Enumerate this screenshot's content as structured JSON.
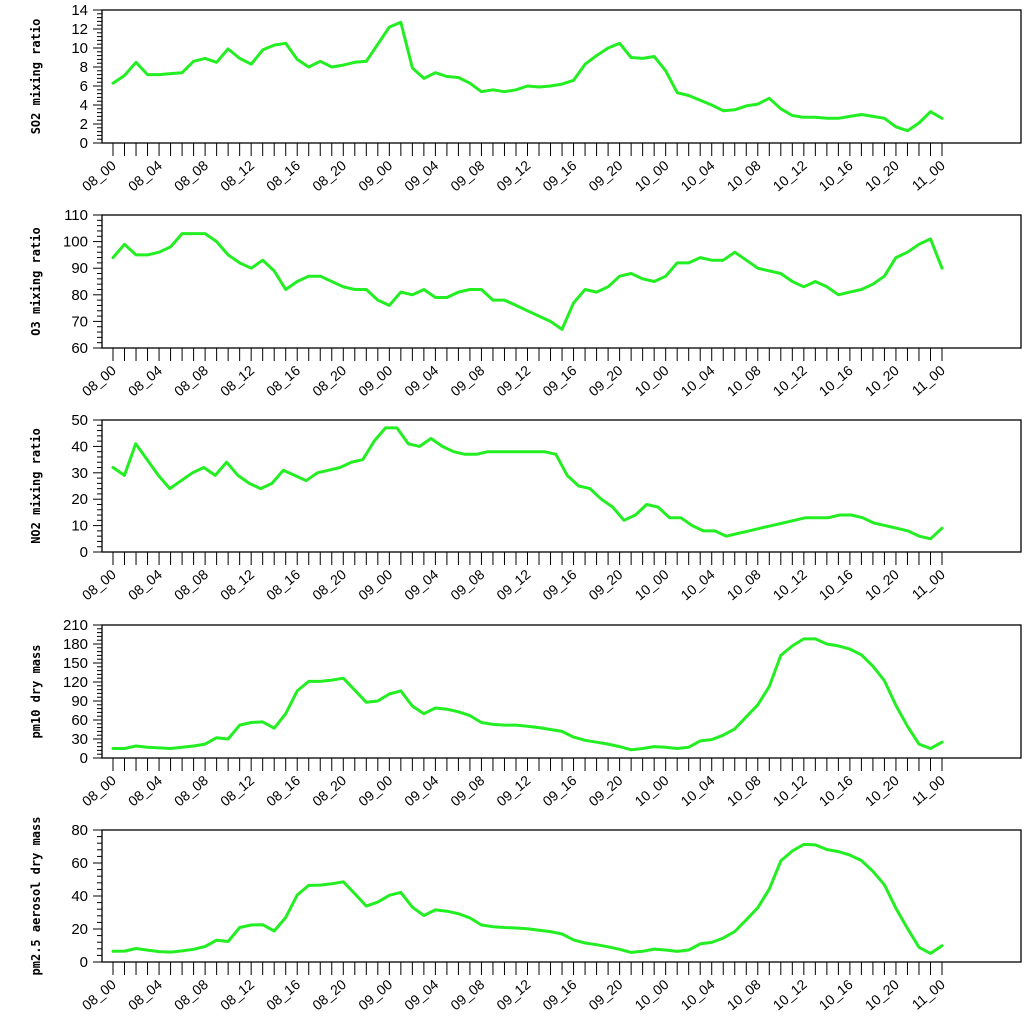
{
  "chart_data": [
    {
      "type": "line",
      "ylabel": "SO2 mixing ratio",
      "ylim": [
        0,
        14
      ],
      "yticks": [
        0,
        2,
        4,
        6,
        8,
        10,
        12,
        14
      ],
      "x_tick_labels": [
        "08_00",
        "08_04",
        "08_08",
        "08_12",
        "08_16",
        "08_20",
        "09_00",
        "09_04",
        "09_08",
        "09_12",
        "09_16",
        "09_20",
        "10_00",
        "10_04",
        "10_08",
        "10_12",
        "10_16",
        "10_20",
        "11_00"
      ],
      "series": [
        {
          "values": [
            6.3,
            7.1,
            8.5,
            7.2,
            7.2,
            7.3,
            7.4,
            8.6,
            8.9,
            8.5,
            9.9,
            8.9,
            8.3,
            9.8,
            10.3,
            10.5,
            8.8,
            8.0,
            8.6,
            8.0,
            8.2,
            8.5,
            8.6,
            10.4,
            12.2,
            12.7,
            7.9,
            6.8,
            7.4,
            7.0,
            6.9,
            6.3,
            5.4,
            5.6,
            5.4,
            5.6,
            6.0,
            5.9,
            6.0,
            6.2,
            6.6,
            8.3,
            9.2,
            10.0,
            10.5,
            9.0,
            8.9,
            9.1,
            7.6,
            5.3,
            5.0,
            4.5,
            4.0,
            3.4,
            3.5,
            3.9,
            4.1,
            4.7,
            3.6,
            2.9,
            2.7,
            2.7,
            2.6,
            2.6,
            2.8,
            3.0,
            2.8,
            2.6,
            1.7,
            1.3,
            2.1,
            3.3,
            2.6
          ]
        }
      ]
    },
    {
      "type": "line",
      "ylabel": "O3 mixing ratio",
      "ylim": [
        60,
        110
      ],
      "yticks": [
        60,
        70,
        80,
        90,
        100,
        110
      ],
      "x_tick_labels": [
        "08_00",
        "08_04",
        "08_08",
        "08_12",
        "08_16",
        "08_20",
        "09_00",
        "09_04",
        "09_08",
        "09_12",
        "09_16",
        "09_20",
        "10_00",
        "10_04",
        "10_08",
        "10_12",
        "10_16",
        "10_20",
        "11_00"
      ],
      "series": [
        {
          "values": [
            94,
            99,
            95,
            95,
            96,
            98,
            103,
            103,
            103,
            100,
            95,
            92,
            90,
            93,
            89,
            82,
            85,
            87,
            87,
            85,
            83,
            82,
            82,
            78,
            76,
            81,
            80,
            82,
            79,
            79,
            81,
            82,
            82,
            78,
            78,
            76,
            74,
            72,
            70,
            67,
            77,
            82,
            81,
            83,
            87,
            88,
            86,
            85,
            87,
            92,
            92,
            94,
            93,
            93,
            96,
            93,
            90,
            89,
            88,
            85,
            83,
            85,
            83,
            80,
            81,
            82,
            84,
            87,
            94,
            96,
            99,
            101,
            90
          ]
        }
      ]
    },
    {
      "type": "line",
      "ylabel": "NO2 mixing ratio",
      "ylim": [
        0,
        50
      ],
      "yticks": [
        0,
        10,
        20,
        30,
        40,
        50
      ],
      "x_tick_labels": [
        "08_00",
        "08_04",
        "08_08",
        "08_12",
        "08_16",
        "08_20",
        "09_00",
        "09_04",
        "09_08",
        "09_12",
        "09_16",
        "09_20",
        "10_00",
        "10_04",
        "10_08",
        "10_12",
        "10_16",
        "10_20",
        "11_00"
      ],
      "series": [
        {
          "values": [
            32,
            29,
            41,
            35,
            29,
            24,
            27,
            30,
            32,
            29,
            34,
            29,
            26,
            24,
            26,
            31,
            29,
            27,
            30,
            31,
            32,
            34,
            35,
            42,
            47,
            47,
            41,
            40,
            43,
            40,
            38,
            37,
            37,
            38,
            38,
            38,
            38,
            38,
            38,
            37,
            29,
            25,
            24,
            20,
            17,
            12,
            14,
            18,
            17,
            13,
            13,
            10,
            8,
            8,
            6,
            7,
            8,
            9,
            10,
            11,
            12,
            13,
            13,
            13,
            14,
            14,
            13,
            11,
            10,
            9,
            8,
            6,
            5,
            9
          ]
        }
      ]
    },
    {
      "type": "line",
      "ylabel": "pm10 dry mass",
      "ylim": [
        0,
        210
      ],
      "yticks": [
        0,
        30,
        60,
        90,
        120,
        150,
        180,
        210
      ],
      "x_tick_labels": [
        "08_00",
        "08_04",
        "08_08",
        "08_12",
        "08_16",
        "08_20",
        "09_00",
        "09_04",
        "09_08",
        "09_12",
        "09_16",
        "09_20",
        "10_00",
        "10_04",
        "10_08",
        "10_12",
        "10_16",
        "10_20",
        "11_00"
      ],
      "series": [
        {
          "values": [
            15,
            15,
            19,
            17,
            16,
            15,
            17,
            19,
            22,
            32,
            30,
            52,
            56,
            57,
            47,
            70,
            106,
            121,
            121,
            123,
            126,
            107,
            88,
            90,
            101,
            106,
            82,
            70,
            79,
            77,
            73,
            67,
            56,
            53,
            52,
            52,
            50,
            48,
            45,
            42,
            33,
            28,
            25,
            22,
            18,
            13,
            15,
            18,
            17,
            15,
            17,
            27,
            29,
            36,
            46,
            65,
            84,
            113,
            162,
            177,
            188,
            188,
            180,
            177,
            172,
            163,
            145,
            122,
            83,
            50,
            22,
            15,
            25
          ]
        }
      ]
    },
    {
      "type": "line",
      "ylabel": "pm2.5 aerosol dry mass",
      "ylim": [
        0,
        80
      ],
      "yticks": [
        0,
        20,
        40,
        60,
        80
      ],
      "x_tick_labels": [
        "08_00",
        "08_04",
        "08_08",
        "08_12",
        "08_16",
        "08_20",
        "09_00",
        "09_04",
        "09_08",
        "09_12",
        "09_16",
        "09_20",
        "10_00",
        "10_04",
        "10_08",
        "10_12",
        "10_16",
        "10_20",
        "11_00"
      ],
      "series": [
        {
          "values": [
            6.5,
            6.6,
            8.2,
            7.2,
            6.3,
            6.0,
            6.7,
            7.7,
            9.4,
            13.2,
            12.4,
            20.9,
            22.4,
            22.6,
            18.8,
            27.0,
            40.6,
            46.4,
            46.6,
            47.4,
            48.6,
            41.4,
            33.9,
            36.3,
            40.4,
            42.2,
            33.2,
            28.2,
            31.6,
            30.8,
            29.3,
            26.7,
            22.4,
            21.4,
            20.9,
            20.6,
            20.1,
            19.3,
            18.4,
            17.0,
            13.4,
            11.5,
            10.5,
            9.2,
            7.7,
            5.8,
            6.5,
            7.8,
            7.3,
            6.4,
            7.3,
            11.0,
            11.9,
            14.5,
            18.5,
            25.6,
            32.9,
            44.2,
            61.3,
            67.3,
            71.3,
            71.0,
            68.2,
            66.9,
            64.8,
            61.5,
            55.0,
            46.8,
            32.6,
            20.3,
            8.9,
            5.2,
            9.9
          ]
        }
      ]
    }
  ]
}
